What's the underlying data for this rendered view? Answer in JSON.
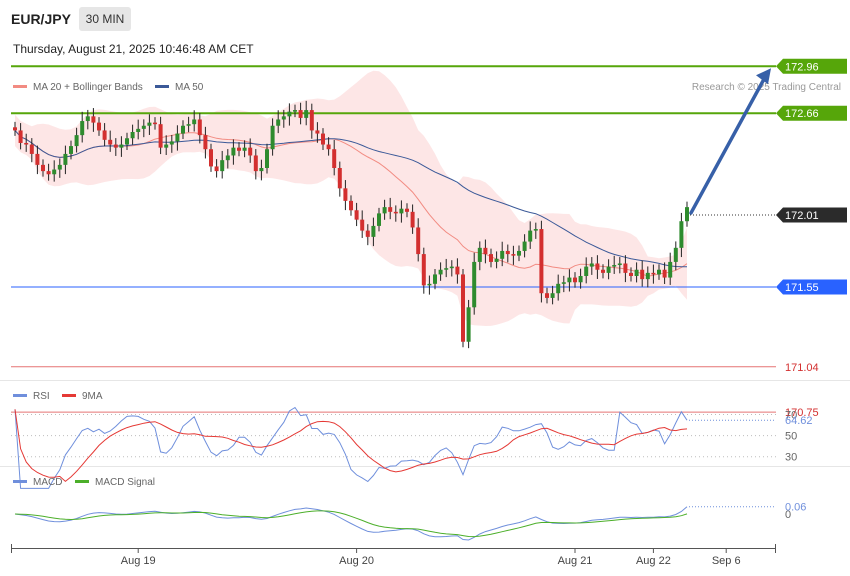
{
  "header": {
    "symbol": "EUR/JPY",
    "timeframe": "30 MIN",
    "datetime": "Thursday, August 21, 2025 10:46:48 AM CET",
    "credit": "Research © 2025 Trading Central"
  },
  "colors": {
    "bb_fill": "#fde2e2",
    "ma20": "#f28b82",
    "ma50": "#3b5998",
    "bull": "#2e8b2e",
    "bear": "#d32f2f",
    "resistance": "#56a60a",
    "support": "#2962ff",
    "lower_support": "#e57373",
    "current": "#333333",
    "arrow": "#3760a8",
    "rsi": "#6f8fdc",
    "rsi_ma": "#e53935",
    "macd": "#6f8fdc",
    "macd_signal": "#4caf2a"
  },
  "chart_data": [
    {
      "type": "candlestick",
      "title": "",
      "legend": [
        {
          "name": "MA 20 + Bollinger Bands",
          "color": "#f28b82"
        },
        {
          "name": "MA 50",
          "color": "#3b5998"
        }
      ],
      "legend_position": "top-left",
      "ylim": [
        170.7,
        173.0
      ],
      "levels": [
        {
          "value": 172.96,
          "label": "172.96",
          "color": "#56a60a",
          "kind": "resistance"
        },
        {
          "value": 172.66,
          "label": "172.66",
          "color": "#56a60a",
          "kind": "resistance"
        },
        {
          "value": 172.01,
          "label": "172.01",
          "color": "#333333",
          "kind": "current"
        },
        {
          "value": 171.55,
          "label": "171.55",
          "color": "#2962ff",
          "kind": "support"
        },
        {
          "value": 171.04,
          "label": "171.04",
          "color": "#d32f2f",
          "kind": "support"
        },
        {
          "value": 170.75,
          "label": "170.75",
          "color": "#d32f2f",
          "kind": "support"
        }
      ],
      "arrow": {
        "from": 172.01,
        "to": 172.96,
        "direction": "up"
      },
      "candles_close": [
        172.55,
        172.47,
        172.46,
        172.4,
        172.33,
        172.29,
        172.27,
        172.3,
        172.33,
        172.4,
        172.45,
        172.52,
        172.61,
        172.64,
        172.6,
        172.55,
        172.49,
        172.46,
        172.44,
        172.46,
        172.5,
        172.54,
        172.56,
        172.58,
        172.6,
        172.59,
        172.44,
        172.46,
        172.48,
        172.53,
        172.58,
        172.59,
        172.62,
        172.52,
        172.43,
        172.32,
        172.29,
        172.36,
        172.39,
        172.44,
        172.42,
        172.44,
        172.39,
        172.29,
        172.31,
        172.43,
        172.58,
        172.62,
        172.64,
        172.67,
        172.68,
        172.63,
        172.68,
        172.55,
        172.53,
        172.46,
        172.43,
        172.31,
        172.18,
        172.1,
        172.04,
        171.98,
        171.91,
        171.87,
        171.94,
        172.02,
        172.06,
        172.03,
        172.02,
        172.05,
        172.03,
        171.93,
        171.76,
        171.56,
        171.57,
        171.63,
        171.66,
        171.67,
        171.68,
        171.63,
        171.2,
        171.42,
        171.71,
        171.8,
        171.76,
        171.71,
        171.73,
        171.78,
        171.76,
        171.75,
        171.78,
        171.84,
        171.91,
        171.92,
        171.51,
        171.48,
        171.51,
        171.57,
        171.58,
        171.61,
        171.58,
        171.62,
        171.68,
        171.7,
        171.66,
        171.64,
        171.68,
        171.69,
        171.7,
        171.64,
        171.62,
        171.66,
        171.6,
        171.64,
        171.63,
        171.66,
        171.61,
        171.71,
        171.8,
        171.97,
        172.06
      ],
      "rsi": {
        "series": [
          {
            "name": "RSI",
            "color": "#6f8fdc"
          },
          {
            "name": "9MA",
            "color": "#e53935"
          }
        ],
        "levels": [
          {
            "value": 70,
            "label": "70"
          },
          {
            "value": 50,
            "label": "50"
          },
          {
            "value": 30,
            "label": "30"
          }
        ],
        "last_value": 64.62,
        "last_label": "64.62",
        "ylim": [
          25,
          80
        ]
      },
      "macd": {
        "series": [
          {
            "name": "MACD",
            "color": "#6f8fdc"
          },
          {
            "name": "MACD Signal",
            "color": "#4caf2a"
          }
        ],
        "levels": [
          {
            "value": 0,
            "label": "0"
          }
        ],
        "last_value": 0.06,
        "last_label": "0.06"
      },
      "x_tick_labels": [
        {
          "label": "Aug 19",
          "index": 22
        },
        {
          "label": "Aug 20",
          "index": 61
        },
        {
          "label": "Aug 21",
          "index": 100
        },
        {
          "label": "Aug 22",
          "index": 114
        },
        {
          "label": "Sep 6",
          "index": 127
        }
      ]
    }
  ]
}
